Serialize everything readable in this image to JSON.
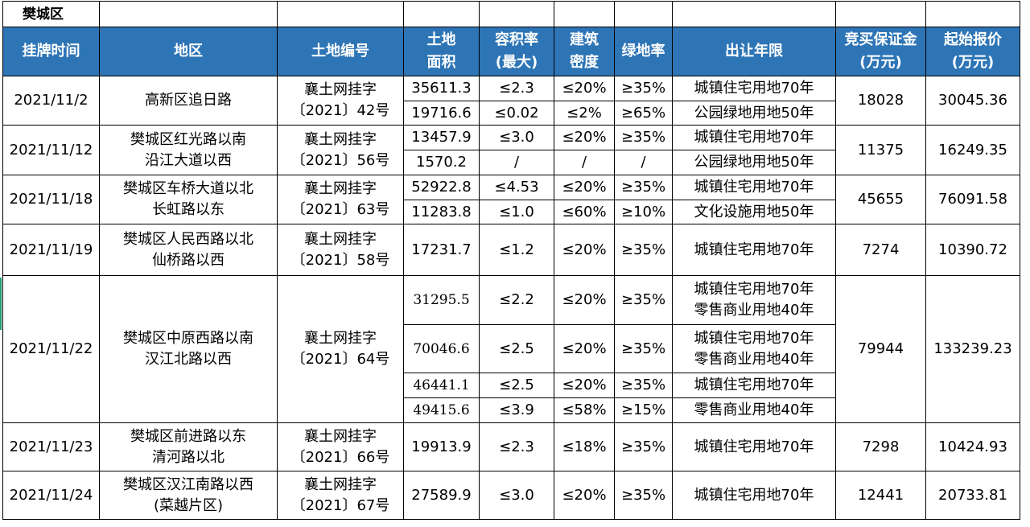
{
  "sheet_title": "樊城区",
  "headers": {
    "listing_time": "挂牌时间",
    "region": "地区",
    "land_no": "土地编号",
    "area_l1": "土地",
    "area_l2": "面积",
    "far_l1": "容积率",
    "far_l2": "(最大)",
    "density_l1": "建筑",
    "density_l2": "密度",
    "green": "绿地率",
    "term": "出让年限",
    "deposit_l1": "竞买保证金",
    "deposit_l2": "(万元)",
    "price_l1": "起始报价",
    "price_l2": "(万元)"
  },
  "groups": [
    {
      "date": "2021/11/2",
      "region": [
        "高新区追日路"
      ],
      "land_no": [
        "襄土网挂字",
        "〔2021〕42号"
      ],
      "deposit": "18028",
      "price": "30045.36",
      "rows": [
        {
          "area": "35611.3",
          "far": "≤2.3",
          "density": "≤20%",
          "green": "≥35%",
          "term": [
            "城镇住宅用地70年"
          ]
        },
        {
          "area": "19716.6",
          "far": "≤0.02",
          "density": "≤2%",
          "green": "≥65%",
          "term": [
            "公园绿地用地50年"
          ]
        }
      ]
    },
    {
      "date": "2021/11/12",
      "region": [
        "樊城区红光路以南",
        "沿江大道以西"
      ],
      "land_no": [
        "襄土网挂字",
        "〔2021〕56号"
      ],
      "deposit": "11375",
      "price": "16249.35",
      "rows": [
        {
          "area": "13457.9",
          "far": "≤3.0",
          "density": "≤20%",
          "green": "≥35%",
          "term": [
            "城镇住宅用地70年"
          ]
        },
        {
          "area": "1570.2",
          "far": "/",
          "density": "/",
          "green": "/",
          "term": [
            "公园绿地用地50年"
          ]
        }
      ]
    },
    {
      "date": "2021/11/18",
      "region": [
        "樊城区车桥大道以北",
        "长虹路以东"
      ],
      "land_no": [
        "襄土网挂字",
        "〔2021〕63号"
      ],
      "deposit": "45655",
      "price": "76091.58",
      "rows": [
        {
          "area": "52922.8",
          "far": "≤4.53",
          "density": "≤20%",
          "green": "≥35%",
          "term": [
            "城镇住宅用地70年"
          ]
        },
        {
          "area": "11283.8",
          "far": "≤1.0",
          "density": "≤60%",
          "green": "≥10%",
          "term": [
            "文化设施用地50年"
          ]
        }
      ]
    },
    {
      "date": "2021/11/19",
      "region": [
        "樊城区人民西路以北",
        "仙桥路以西"
      ],
      "land_no": [
        "襄土网挂字",
        "〔2021〕58号"
      ],
      "deposit": "7274",
      "price": "10390.72",
      "rows": [
        {
          "area": "17231.7",
          "far": "≤1.2",
          "density": "≤20%",
          "green": "≥35%",
          "term": [
            "城镇住宅用地70年"
          ]
        }
      ]
    },
    {
      "date": "2021/11/22",
      "region": [
        "樊城区中原西路以南",
        "汉江北路以西"
      ],
      "land_no": [
        "襄土网挂字",
        "〔2021〕64号"
      ],
      "deposit": "79944",
      "price": "133239.23",
      "rows": [
        {
          "area": "31295.5",
          "far": "≤2.2",
          "density": "≤20%",
          "green": "≥35%",
          "term": [
            "城镇住宅用地70年",
            "零售商业用地40年"
          ]
        },
        {
          "area": "70046.6",
          "far": "≤2.5",
          "density": "≤20%",
          "green": "≥35%",
          "term": [
            "城镇住宅用地70年",
            "零售商业用地40年"
          ]
        },
        {
          "area": "46441.1",
          "far": "≤2.5",
          "density": "≤20%",
          "green": "≥35%",
          "term": [
            "城镇住宅用地70年"
          ]
        },
        {
          "area": "49415.6",
          "far": "≤3.9",
          "density": "≤58%",
          "green": "≥15%",
          "term": [
            "零售商业用地40年"
          ]
        }
      ]
    },
    {
      "date": "2021/11/23",
      "region": [
        "樊城区前进路以东",
        "清河路以北"
      ],
      "land_no": [
        "襄土网挂字",
        "〔2021〕66号"
      ],
      "deposit": "7298",
      "price": "10424.93",
      "rows": [
        {
          "area": "19913.9",
          "far": "≤2.3",
          "density": "≤18%",
          "green": "≥35%",
          "term": [
            "城镇住宅用地70年"
          ]
        }
      ]
    },
    {
      "date": "2021/11/24",
      "region": [
        "樊城区汉江南路以西",
        "(菜越片区)"
      ],
      "land_no": [
        "襄土网挂字",
        "〔2021〕67号"
      ],
      "deposit": "12441",
      "price": "20733.81",
      "rows": [
        {
          "area": "27589.9",
          "far": "≤3.0",
          "density": "≤20%",
          "green": "≥35%",
          "term": [
            "城镇住宅用地70年"
          ]
        }
      ]
    }
  ]
}
